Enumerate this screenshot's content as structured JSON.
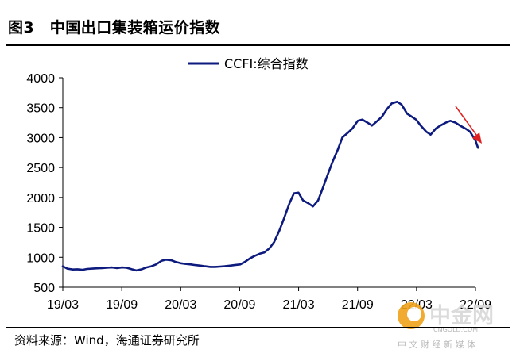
{
  "figure": {
    "title": "图3　中国出口集装箱运价指数",
    "source": "资料来源：Wind，海通证券研究所"
  },
  "watermark": {
    "name": "中金网",
    "domain": "CNGOLD.COM",
    "tagline": "中 文 财 经 新 媒 体"
  },
  "colors": {
    "series": "#0d1a7e",
    "trend_arrow": "#e02020",
    "wm_orange": "#f0a21a"
  },
  "chart_data": {
    "type": "line",
    "legend": {
      "placement": "top-center",
      "entries": [
        "CCFI:综合指数"
      ]
    },
    "yaxis": {
      "min": 500,
      "max": 4000,
      "ticks": [
        "500",
        "1000",
        "1500",
        "2000",
        "2500",
        "3000",
        "3500",
        "4000"
      ]
    },
    "xaxis": {
      "ticks": [
        "19/03",
        "19/09",
        "20/03",
        "20/09",
        "21/03",
        "21/09",
        "22/03",
        "22/09"
      ]
    },
    "grid": false,
    "annotations": [
      {
        "type": "arrow",
        "direction": "down-right",
        "meaning": "declining trend"
      }
    ],
    "series": [
      {
        "name": "CCFI:综合指数",
        "x": [
          "2019-03-01",
          "2019-03-15",
          "2019-04-01",
          "2019-04-15",
          "2019-05-01",
          "2019-05-15",
          "2019-06-01",
          "2019-06-15",
          "2019-07-01",
          "2019-07-15",
          "2019-08-01",
          "2019-08-15",
          "2019-09-01",
          "2019-09-15",
          "2019-10-01",
          "2019-10-15",
          "2019-11-01",
          "2019-11-15",
          "2019-12-01",
          "2019-12-15",
          "2020-01-01",
          "2020-01-15",
          "2020-02-01",
          "2020-02-15",
          "2020-03-01",
          "2020-03-15",
          "2020-04-01",
          "2020-04-15",
          "2020-05-01",
          "2020-05-15",
          "2020-06-01",
          "2020-06-15",
          "2020-07-01",
          "2020-07-15",
          "2020-08-01",
          "2020-08-15",
          "2020-09-01",
          "2020-09-15",
          "2020-10-01",
          "2020-10-15",
          "2020-11-01",
          "2020-11-15",
          "2020-12-01",
          "2020-12-15",
          "2021-01-01",
          "2021-01-15",
          "2021-02-01",
          "2021-02-15",
          "2021-03-01",
          "2021-03-15",
          "2021-04-01",
          "2021-04-15",
          "2021-05-01",
          "2021-05-15",
          "2021-06-01",
          "2021-06-15",
          "2021-07-01",
          "2021-07-15",
          "2021-08-01",
          "2021-08-15",
          "2021-09-01",
          "2021-09-15",
          "2021-10-01",
          "2021-10-15",
          "2021-11-01",
          "2021-11-15",
          "2021-12-01",
          "2021-12-15",
          "2022-01-01",
          "2022-01-15",
          "2022-02-01",
          "2022-02-15",
          "2022-03-01",
          "2022-03-15",
          "2022-04-01",
          "2022-04-15",
          "2022-05-01",
          "2022-05-15",
          "2022-06-01",
          "2022-06-15",
          "2022-07-01",
          "2022-07-15",
          "2022-08-01",
          "2022-08-15",
          "2022-09-01",
          "2022-09-09"
        ],
        "y": [
          850,
          810,
          795,
          800,
          790,
          805,
          810,
          815,
          820,
          825,
          830,
          820,
          830,
          825,
          800,
          780,
          800,
          830,
          850,
          880,
          940,
          960,
          950,
          920,
          900,
          890,
          880,
          870,
          860,
          850,
          840,
          840,
          845,
          850,
          860,
          870,
          880,
          920,
          980,
          1020,
          1060,
          1080,
          1150,
          1250,
          1450,
          1650,
          1900,
          2070,
          2080,
          1950,
          1900,
          1850,
          1950,
          2150,
          2400,
          2600,
          2800,
          3000,
          3080,
          3150,
          3280,
          3300,
          3250,
          3200,
          3280,
          3350,
          3480,
          3570,
          3600,
          3550,
          3400,
          3350,
          3300,
          3200,
          3100,
          3050,
          3150,
          3200,
          3250,
          3280,
          3250,
          3200,
          3150,
          3100,
          2950,
          2830
        ]
      }
    ]
  }
}
